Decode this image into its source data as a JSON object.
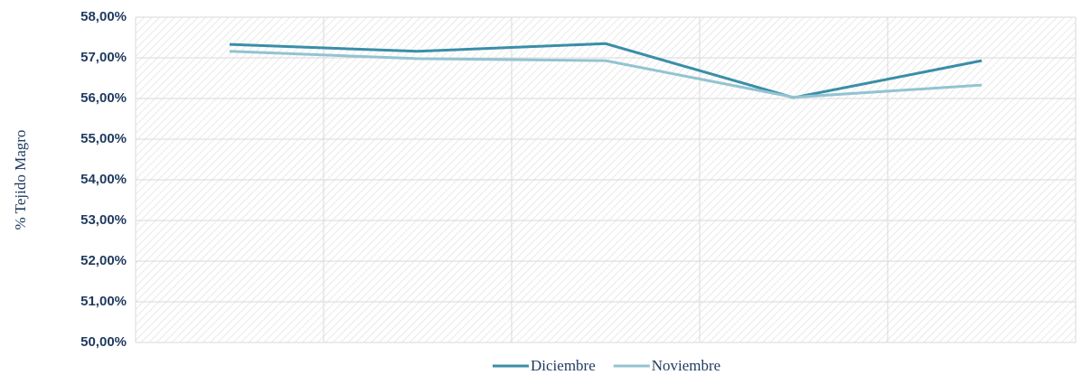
{
  "chart_data": {
    "type": "line",
    "y_label": "% Tejido Magro",
    "categories": [
      null,
      null,
      null,
      null,
      null
    ],
    "series": [
      {
        "name": "Diciembre",
        "color": "#3a8ea8",
        "values": [
          57.33,
          57.16,
          57.35,
          56.02,
          56.93
        ]
      },
      {
        "name": "Noviembre",
        "color": "#93c3d1",
        "values": [
          57.16,
          56.98,
          56.93,
          56.03,
          56.33
        ]
      }
    ],
    "ylim": [
      50,
      58
    ],
    "yticks": [
      {
        "value": 50,
        "label": "50,00%"
      },
      {
        "value": 51,
        "label": "51,00%"
      },
      {
        "value": 52,
        "label": "52,00%"
      },
      {
        "value": 53,
        "label": "53,00%"
      },
      {
        "value": 54,
        "label": "54,00%"
      },
      {
        "value": 55,
        "label": "55,00%"
      },
      {
        "value": 56,
        "label": "56,00%"
      },
      {
        "value": 57,
        "label": "57,00%"
      },
      {
        "value": 58,
        "label": "58,00%"
      }
    ],
    "grid": true,
    "legend": "bottom"
  }
}
